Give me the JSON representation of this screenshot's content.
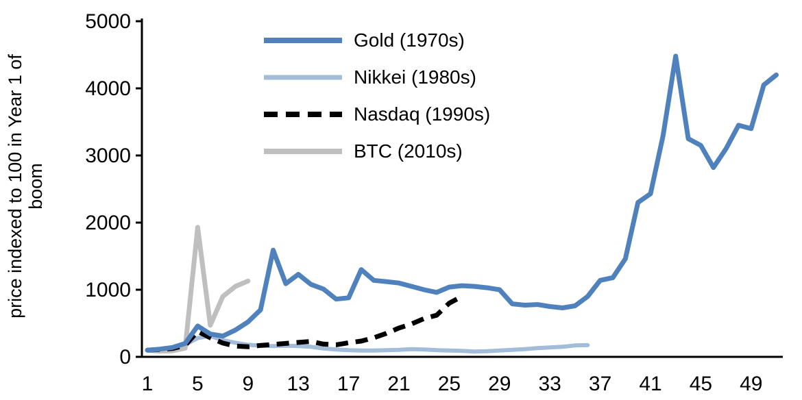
{
  "chart": {
    "ylabel_lines": [
      "price indexed to 100 in Year 1 of",
      "boom"
    ]
  },
  "chart_data": {
    "type": "line",
    "ylabel": "price indexed to 100 in Year 1 of boom",
    "xlim": [
      1,
      51
    ],
    "ylim": [
      0,
      5000
    ],
    "xticks": [
      1,
      5,
      9,
      13,
      17,
      21,
      25,
      29,
      33,
      37,
      41,
      45,
      49
    ],
    "yticks": [
      0,
      1000,
      2000,
      3000,
      4000,
      5000
    ],
    "grid": false,
    "legend_position": "inside-top-left",
    "axis_color": "#000000",
    "background": "#ffffff",
    "series": [
      {
        "name": "Gold (1970s)",
        "slug": "gold-1970s",
        "color": "#4f81bd",
        "stroke_width": 7,
        "dash": "",
        "x_start": 1,
        "values": [
          100,
          115,
          140,
          200,
          460,
          340,
          310,
          400,
          520,
          700,
          1590,
          1090,
          1230,
          1080,
          1010,
          860,
          880,
          1300,
          1140,
          1120,
          1100,
          1050,
          1000,
          960,
          1040,
          1060,
          1050,
          1030,
          1000,
          790,
          770,
          780,
          750,
          730,
          760,
          900,
          1140,
          1180,
          1460,
          2300,
          2430,
          3300,
          4480,
          3250,
          3150,
          2820,
          3100,
          3450,
          3400,
          4050,
          4200
        ]
      },
      {
        "name": "Nikkei (1980s)",
        "slug": "nikkei-1980s",
        "color": "#a3bcd9",
        "stroke_width": 6,
        "dash": "",
        "x_start": 1,
        "values": [
          100,
          110,
          130,
          180,
          280,
          310,
          250,
          210,
          180,
          165,
          160,
          165,
          160,
          150,
          125,
          110,
          100,
          95,
          95,
          100,
          105,
          115,
          110,
          100,
          95,
          90,
          80,
          85,
          95,
          105,
          115,
          130,
          140,
          150,
          170,
          175
        ]
      },
      {
        "name": "Nasdaq (1990s)",
        "slug": "nasdaq-1990s",
        "color": "#000000",
        "stroke_width": 7,
        "dash": "18 11",
        "x_start": 1,
        "values": [
          100,
          110,
          125,
          170,
          380,
          285,
          205,
          160,
          150,
          170,
          185,
          200,
          215,
          230,
          190,
          180,
          210,
          235,
          285,
          350,
          430,
          490,
          570,
          620,
          800,
          900
        ]
      },
      {
        "name": "BTC (2010s)",
        "slug": "btc-2010s",
        "color": "#bfbfbf",
        "stroke_width": 7,
        "dash": "",
        "x_start": 1,
        "values": [
          100,
          85,
          90,
          130,
          1930,
          470,
          900,
          1050,
          1130
        ]
      }
    ]
  }
}
